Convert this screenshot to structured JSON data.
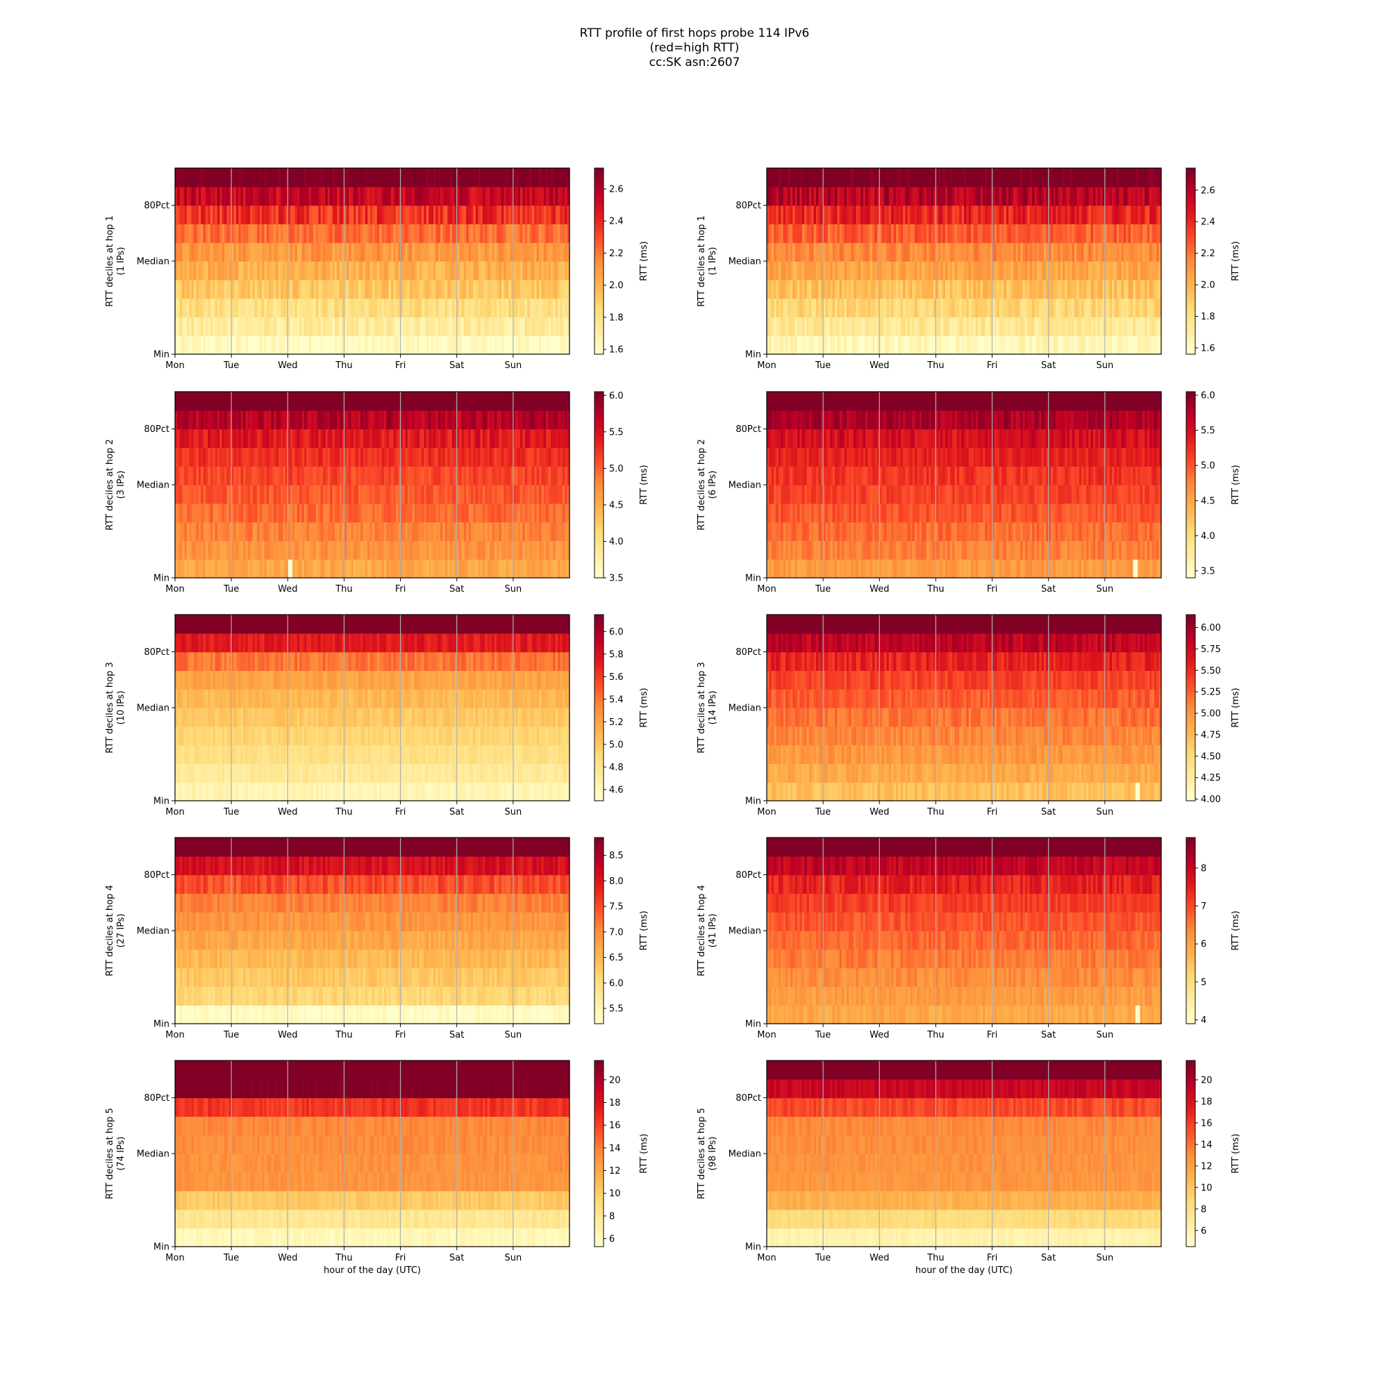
{
  "title": [
    "RTT profile of first hops probe 114 IPv6",
    "(red=high RTT)",
    "cc:SK asn:2607"
  ],
  "colormap": [
    "#ffffcc",
    "#ffeda0",
    "#fed976",
    "#feb24c",
    "#fd8d3c",
    "#fc4e2a",
    "#e31a1c",
    "#bd0026",
    "#800026"
  ],
  "chart_data": [
    {
      "type": "heatmap",
      "hop": 1,
      "ylabel": "RTT deciles at hop 1",
      "ips": "(1 IPs)",
      "xticks": [
        "Mon",
        "Tue",
        "Wed",
        "Thu",
        "Fri",
        "Sat",
        "Sun"
      ],
      "yticks": [
        "Min",
        "Median",
        "80Pct"
      ],
      "colorbar": {
        "label": "RTT (ms)",
        "min": 1.57,
        "max": 2.73,
        "ticks": [
          "1.6",
          "1.8",
          "2.0",
          "2.2",
          "2.4",
          "2.6"
        ]
      },
      "deciles": [
        1.6,
        1.72,
        1.82,
        1.92,
        2.02,
        2.1,
        2.22,
        2.38,
        2.55,
        2.8
      ],
      "noise": 0.09,
      "spikes": []
    },
    {
      "type": "heatmap",
      "hop": 1,
      "ylabel": "RTT deciles at hop 1",
      "ips": "(1 IPs)",
      "xticks": [
        "Mon",
        "Tue",
        "Wed",
        "Thu",
        "Fri",
        "Sat",
        "Sun"
      ],
      "yticks": [
        "Min",
        "Median",
        "80Pct"
      ],
      "colorbar": {
        "label": "RTT (ms)",
        "min": 1.56,
        "max": 2.74,
        "ticks": [
          "1.6",
          "1.8",
          "2.0",
          "2.2",
          "2.4",
          "2.6"
        ]
      },
      "deciles": [
        1.62,
        1.75,
        1.85,
        1.95,
        2.05,
        2.14,
        2.26,
        2.42,
        2.6,
        2.8
      ],
      "noise": 0.09,
      "spikes": []
    },
    {
      "type": "heatmap",
      "hop": 2,
      "ylabel": "RTT deciles at hop 2",
      "ips": "(3 IPs)",
      "xticks": [
        "Mon",
        "Tue",
        "Wed",
        "Thu",
        "Fri",
        "Sat",
        "Sun"
      ],
      "yticks": [
        "Min",
        "Median",
        "80Pct"
      ],
      "colorbar": {
        "label": "RTT (ms)",
        "min": 3.5,
        "max": 6.05,
        "ticks": [
          "3.5",
          "4.0",
          "4.5",
          "5.0",
          "5.5",
          "6.0"
        ]
      },
      "deciles": [
        4.55,
        4.7,
        4.82,
        4.95,
        5.05,
        5.15,
        5.28,
        5.45,
        5.75,
        6.4
      ],
      "noise": 0.15,
      "spikes": [
        {
          "day": 2.02,
          "decile": 0,
          "value": 3.5
        }
      ]
    },
    {
      "type": "heatmap",
      "hop": 2,
      "ylabel": "RTT deciles at hop 2",
      "ips": "(6 IPs)",
      "xticks": [
        "Mon",
        "Tue",
        "Wed",
        "Thu",
        "Fri",
        "Sat",
        "Sun"
      ],
      "yticks": [
        "Min",
        "Median",
        "80Pct"
      ],
      "colorbar": {
        "label": "RTT (ms)",
        "min": 3.4,
        "max": 6.05,
        "ticks": [
          "3.5",
          "4.0",
          "4.5",
          "5.0",
          "5.5",
          "6.0"
        ]
      },
      "deciles": [
        4.6,
        4.78,
        4.9,
        5.02,
        5.12,
        5.22,
        5.35,
        5.52,
        5.8,
        6.4
      ],
      "noise": 0.15,
      "spikes": [
        {
          "day": 6.5,
          "decile": 0,
          "value": 3.4
        }
      ]
    },
    {
      "type": "heatmap",
      "hop": 3,
      "ylabel": "RTT deciles at hop 3",
      "ips": "(10 IPs)",
      "xticks": [
        "Mon",
        "Tue",
        "Wed",
        "Thu",
        "Fri",
        "Sat",
        "Sun"
      ],
      "yticks": [
        "Min",
        "Median",
        "80Pct"
      ],
      "colorbar": {
        "label": "RTT (ms)",
        "min": 4.5,
        "max": 6.15,
        "ticks": [
          "4.6",
          "4.8",
          "5.0",
          "5.2",
          "5.4",
          "5.6",
          "5.8",
          "6.0"
        ]
      },
      "deciles": [
        4.62,
        4.74,
        4.84,
        4.92,
        5.0,
        5.08,
        5.2,
        5.4,
        5.75,
        6.3
      ],
      "noise": 0.07,
      "spikes": []
    },
    {
      "type": "heatmap",
      "hop": 3,
      "ylabel": "RTT deciles at hop 3",
      "ips": "(14 IPs)",
      "xticks": [
        "Mon",
        "Tue",
        "Wed",
        "Thu",
        "Fri",
        "Sat",
        "Sun"
      ],
      "yticks": [
        "Min",
        "Median",
        "80Pct"
      ],
      "colorbar": {
        "label": "RTT (ms)",
        "min": 3.98,
        "max": 6.15,
        "ticks": [
          "4.00",
          "4.25",
          "4.50",
          "4.75",
          "5.00",
          "5.25",
          "5.50",
          "5.75",
          "6.00"
        ]
      },
      "deciles": [
        4.7,
        4.85,
        4.98,
        5.08,
        5.18,
        5.28,
        5.4,
        5.58,
        5.85,
        6.3
      ],
      "noise": 0.12,
      "spikes": [
        {
          "day": 6.55,
          "decile": 0,
          "value": 4.0
        }
      ]
    },
    {
      "type": "heatmap",
      "hop": 4,
      "ylabel": "RTT deciles at hop 4",
      "ips": "(27 IPs)",
      "xticks": [
        "Mon",
        "Tue",
        "Wed",
        "Thu",
        "Fri",
        "Sat",
        "Sun"
      ],
      "yticks": [
        "Min",
        "Median",
        "80Pct"
      ],
      "colorbar": {
        "label": "RTT (ms)",
        "min": 5.2,
        "max": 8.85,
        "ticks": [
          "5.5",
          "6.0",
          "6.5",
          "7.0",
          "7.5",
          "8.0",
          "8.5"
        ]
      },
      "deciles": [
        5.3,
        6.1,
        6.3,
        6.5,
        6.7,
        6.9,
        7.1,
        7.5,
        8.1,
        9.2
      ],
      "noise": 0.18,
      "spikes": []
    },
    {
      "type": "heatmap",
      "hop": 4,
      "ylabel": "RTT deciles at hop 4",
      "ips": "(41 IPs)",
      "xticks": [
        "Mon",
        "Tue",
        "Wed",
        "Thu",
        "Fri",
        "Sat",
        "Sun"
      ],
      "yticks": [
        "Min",
        "Median",
        "80Pct"
      ],
      "colorbar": {
        "label": "RTT (ms)",
        "min": 3.9,
        "max": 8.8,
        "ticks": [
          "4",
          "5",
          "6",
          "7",
          "8"
        ]
      },
      "deciles": [
        5.9,
        6.1,
        6.3,
        6.5,
        6.7,
        6.9,
        7.15,
        7.5,
        8.1,
        9.2
      ],
      "noise": 0.25,
      "spikes": [
        {
          "day": 6.55,
          "decile": 0,
          "value": 3.9
        }
      ]
    },
    {
      "type": "heatmap",
      "hop": 5,
      "ylabel": "RTT deciles at hop 5",
      "ips": "(74 IPs)",
      "xticks": [
        "Mon",
        "Tue",
        "Wed",
        "Thu",
        "Fri",
        "Sat",
        "Sun"
      ],
      "yticks": [
        "Min",
        "Median",
        "80Pct"
      ],
      "colorbar": {
        "label": "RTT (ms)",
        "min": 5.3,
        "max": 21.7,
        "ticks": [
          "6",
          "8",
          "10",
          "12",
          "14",
          "16",
          "18",
          "20"
        ]
      },
      "deciles": [
        6.2,
        8.0,
        10.2,
        13.0,
        13.2,
        13.4,
        13.6,
        16.5,
        22.0,
        24.0
      ],
      "noise": 0.6,
      "spikes": []
    },
    {
      "type": "heatmap",
      "hop": 5,
      "ylabel": "RTT deciles at hop 5",
      "ips": "(98 IPs)",
      "xticks": [
        "Mon",
        "Tue",
        "Wed",
        "Thu",
        "Fri",
        "Sat",
        "Sun"
      ],
      "yticks": [
        "Min",
        "Median",
        "80Pct"
      ],
      "colorbar": {
        "label": "RTT (ms)",
        "min": 4.5,
        "max": 21.8,
        "ticks": [
          "6",
          "8",
          "10",
          "12",
          "14",
          "16",
          "18",
          "20"
        ]
      },
      "deciles": [
        6.0,
        8.5,
        11.0,
        12.6,
        12.8,
        13.0,
        13.2,
        15.5,
        19.0,
        24.0
      ],
      "noise": 0.6,
      "spikes": []
    }
  ],
  "xlabel": "hour of the day (UTC)",
  "cbar_label": "RTT (ms)"
}
